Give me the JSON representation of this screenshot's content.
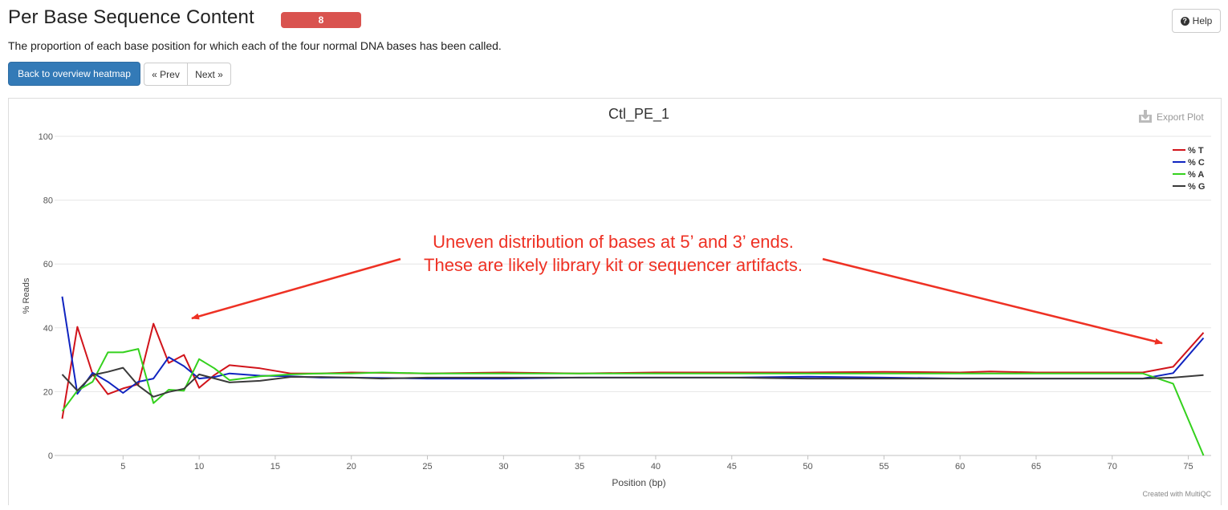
{
  "header": {
    "title": "Per Base Sequence Content",
    "badge": "8",
    "help_label": "Help",
    "help_icon": "question-circle-icon",
    "description": "The proportion of each base position for which each of the four normal DNA bases has been called."
  },
  "nav": {
    "back_label": "Back to overview heatmap",
    "prev_label": "« Prev",
    "next_label": "Next »"
  },
  "plot": {
    "export_label": "Export Plot",
    "export_icon": "download-icon",
    "credit": "Created with MultiQC",
    "annotation_line1": "Uneven distribution of bases at 5’ and 3’ ends.",
    "annotation_line2": "These are likely library kit or sequencer artifacts."
  },
  "colors": {
    "badge": "#d9534f",
    "primary_button": "#337ab7",
    "annotation": "#ee3124",
    "T": "#d1141b",
    "C": "#1024c0",
    "A": "#34d11d",
    "G": "#3a3a3a"
  },
  "chart_data": {
    "type": "line",
    "title": "Ctl_PE_1",
    "xlabel": "Position (bp)",
    "ylabel": "% Reads",
    "xlim": [
      0.5,
      76.5
    ],
    "ylim": [
      0,
      100
    ],
    "xticks": [
      5,
      10,
      15,
      20,
      25,
      30,
      35,
      40,
      45,
      50,
      55,
      60,
      65,
      70,
      75
    ],
    "yticks": [
      0,
      20,
      40,
      60,
      80,
      100
    ],
    "grid": true,
    "legend_position": "top-right",
    "series": [
      {
        "name": "% T",
        "color": "#d1141b",
        "points": [
          [
            1,
            11.5
          ],
          [
            2,
            40.3
          ],
          [
            3,
            25.5
          ],
          [
            4,
            19.2
          ],
          [
            5,
            21.0
          ],
          [
            6,
            22.3
          ],
          [
            7,
            41.3
          ],
          [
            8,
            29.0
          ],
          [
            9,
            31.5
          ],
          [
            10,
            21.2
          ],
          [
            11,
            25.2
          ],
          [
            12,
            28.3
          ],
          [
            14,
            27.3
          ],
          [
            16,
            25.7
          ],
          [
            18,
            25.7
          ],
          [
            20,
            26.0
          ],
          [
            25,
            25.7
          ],
          [
            30,
            26.0
          ],
          [
            35,
            25.7
          ],
          [
            40,
            26.0
          ],
          [
            45,
            26.0
          ],
          [
            50,
            26.0
          ],
          [
            55,
            26.2
          ],
          [
            60,
            26.0
          ],
          [
            62,
            26.3
          ],
          [
            65,
            26.0
          ],
          [
            70,
            26.0
          ],
          [
            72,
            26.0
          ],
          [
            74,
            27.8
          ],
          [
            76,
            38.5
          ]
        ]
      },
      {
        "name": "% C",
        "color": "#1024c0",
        "points": [
          [
            1,
            49.8
          ],
          [
            2,
            19.3
          ],
          [
            3,
            25.9
          ],
          [
            4,
            23.1
          ],
          [
            5,
            19.6
          ],
          [
            6,
            23.1
          ],
          [
            7,
            24.1
          ],
          [
            8,
            30.8
          ],
          [
            9,
            28.0
          ],
          [
            10,
            24.1
          ],
          [
            11,
            24.6
          ],
          [
            12,
            25.7
          ],
          [
            14,
            25.0
          ],
          [
            16,
            24.8
          ],
          [
            18,
            24.4
          ],
          [
            20,
            24.4
          ],
          [
            25,
            24.1
          ],
          [
            30,
            24.1
          ],
          [
            35,
            24.4
          ],
          [
            40,
            24.4
          ],
          [
            45,
            24.4
          ],
          [
            50,
            24.7
          ],
          [
            55,
            24.4
          ],
          [
            60,
            24.1
          ],
          [
            65,
            24.1
          ],
          [
            70,
            24.1
          ],
          [
            72,
            24.1
          ],
          [
            74,
            25.8
          ],
          [
            76,
            36.8
          ]
        ]
      },
      {
        "name": "% A",
        "color": "#34d11d",
        "points": [
          [
            1,
            13.9
          ],
          [
            2,
            20.3
          ],
          [
            3,
            23.1
          ],
          [
            4,
            32.3
          ],
          [
            5,
            32.3
          ],
          [
            6,
            33.4
          ],
          [
            7,
            16.4
          ],
          [
            8,
            20.6
          ],
          [
            9,
            20.3
          ],
          [
            10,
            30.2
          ],
          [
            11,
            27.3
          ],
          [
            12,
            23.6
          ],
          [
            14,
            24.8
          ],
          [
            16,
            25.4
          ],
          [
            18,
            25.7
          ],
          [
            20,
            25.7
          ],
          [
            22,
            26.0
          ],
          [
            25,
            25.7
          ],
          [
            30,
            25.7
          ],
          [
            35,
            25.7
          ],
          [
            40,
            25.7
          ],
          [
            45,
            25.7
          ],
          [
            50,
            25.7
          ],
          [
            55,
            25.7
          ],
          [
            60,
            25.7
          ],
          [
            65,
            25.7
          ],
          [
            70,
            25.7
          ],
          [
            72,
            25.7
          ],
          [
            74,
            22.5
          ],
          [
            76,
            0
          ]
        ]
      },
      {
        "name": "% G",
        "color": "#3a3a3a",
        "points": [
          [
            1,
            25.4
          ],
          [
            2,
            20.3
          ],
          [
            3,
            25.2
          ],
          [
            4,
            26.2
          ],
          [
            5,
            27.5
          ],
          [
            6,
            21.9
          ],
          [
            7,
            18.4
          ],
          [
            8,
            19.9
          ],
          [
            9,
            20.9
          ],
          [
            10,
            25.4
          ],
          [
            12,
            22.9
          ],
          [
            14,
            23.4
          ],
          [
            16,
            24.6
          ],
          [
            18,
            24.6
          ],
          [
            20,
            24.4
          ],
          [
            22,
            24.1
          ],
          [
            25,
            24.4
          ],
          [
            30,
            24.4
          ],
          [
            35,
            24.4
          ],
          [
            40,
            24.4
          ],
          [
            45,
            24.4
          ],
          [
            50,
            24.1
          ],
          [
            55,
            24.1
          ],
          [
            60,
            24.1
          ],
          [
            65,
            24.1
          ],
          [
            70,
            24.1
          ],
          [
            72,
            24.1
          ],
          [
            74,
            24.4
          ],
          [
            76,
            25.2
          ]
        ]
      }
    ]
  }
}
